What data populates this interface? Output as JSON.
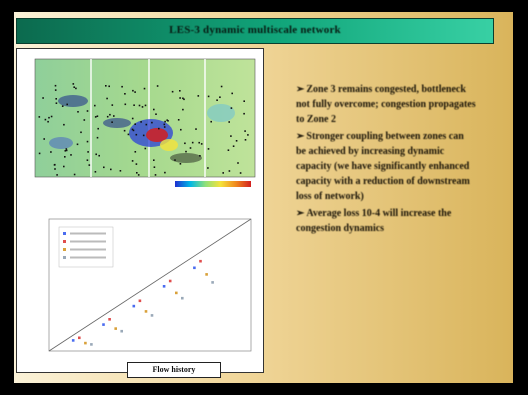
{
  "slide": {
    "title": "LES-3 dynamic multiscale network",
    "bullets": [
      "Zone 3 remains congested, bottleneck not fully overcome; congestion propagates to Zone 2",
      "Stronger coupling between zones can be achieved by increasing dynamic capacity (we have significantly enhanced capacity with a reduction of downstream loss of network)",
      "Average loss 10-4 will increase the congestion dynamics"
    ],
    "caption": "Flow history"
  },
  "map": {
    "colorbar_colors": [
      "#1f2fd0",
      "#00b7e6",
      "#8fe07a",
      "#f5e33b",
      "#f08a1e",
      "#d21f1f"
    ]
  },
  "chart_data": {
    "type": "scatter",
    "title": "",
    "xlabel": "",
    "ylabel": "",
    "series": [
      {
        "color": "#4a6cf0",
        "x": [
          0.12,
          0.27,
          0.42,
          0.57,
          0.72
        ],
        "y": [
          0.08,
          0.2,
          0.34,
          0.49,
          0.63
        ]
      },
      {
        "color": "#e04d4d",
        "x": [
          0.15,
          0.3,
          0.45,
          0.6,
          0.75
        ],
        "y": [
          0.1,
          0.24,
          0.38,
          0.53,
          0.68
        ]
      },
      {
        "color": "#d9a13a",
        "x": [
          0.18,
          0.33,
          0.48,
          0.63,
          0.78
        ],
        "y": [
          0.06,
          0.17,
          0.3,
          0.44,
          0.58
        ]
      },
      {
        "color": "#9aa9b8",
        "x": [
          0.21,
          0.36,
          0.51,
          0.66,
          0.81
        ],
        "y": [
          0.05,
          0.15,
          0.27,
          0.4,
          0.52
        ]
      }
    ],
    "reference_line": {
      "x": [
        0.0,
        1.0
      ],
      "y": [
        0.0,
        1.0
      ]
    },
    "xlim": [
      0,
      1
    ],
    "ylim": [
      0,
      1
    ],
    "grid": false,
    "legend": "top-left"
  }
}
